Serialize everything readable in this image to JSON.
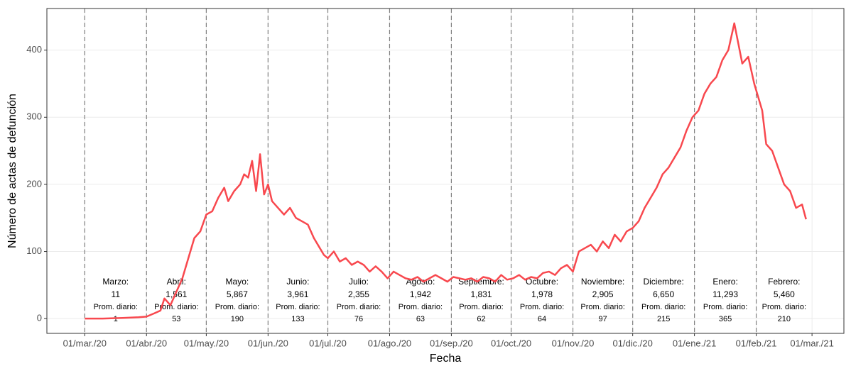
{
  "chart_data": {
    "type": "line",
    "xlabel": "Fecha",
    "ylabel": "Número de actas de defunción",
    "x": [
      "2020-03-01",
      "2020-03-10",
      "2020-03-20",
      "2020-03-28",
      "2020-04-01",
      "2020-04-05",
      "2020-04-08",
      "2020-04-10",
      "2020-04-13",
      "2020-04-16",
      "2020-04-19",
      "2020-04-22",
      "2020-04-25",
      "2020-04-28",
      "2020-05-01",
      "2020-05-04",
      "2020-05-07",
      "2020-05-10",
      "2020-05-12",
      "2020-05-15",
      "2020-05-18",
      "2020-05-20",
      "2020-05-22",
      "2020-05-24",
      "2020-05-26",
      "2020-05-28",
      "2020-05-30",
      "2020-06-01",
      "2020-06-03",
      "2020-06-06",
      "2020-06-09",
      "2020-06-12",
      "2020-06-15",
      "2020-06-18",
      "2020-06-21",
      "2020-06-24",
      "2020-06-27",
      "2020-06-29",
      "2020-07-01",
      "2020-07-04",
      "2020-07-07",
      "2020-07-10",
      "2020-07-13",
      "2020-07-16",
      "2020-07-19",
      "2020-07-22",
      "2020-07-25",
      "2020-07-28",
      "2020-07-31",
      "2020-08-03",
      "2020-08-06",
      "2020-08-09",
      "2020-08-12",
      "2020-08-15",
      "2020-08-18",
      "2020-08-21",
      "2020-08-24",
      "2020-08-27",
      "2020-08-30",
      "2020-09-02",
      "2020-09-05",
      "2020-09-08",
      "2020-09-11",
      "2020-09-14",
      "2020-09-17",
      "2020-09-20",
      "2020-09-23",
      "2020-09-26",
      "2020-09-29",
      "2020-10-02",
      "2020-10-05",
      "2020-10-08",
      "2020-10-11",
      "2020-10-14",
      "2020-10-17",
      "2020-10-20",
      "2020-10-23",
      "2020-10-26",
      "2020-10-29",
      "2020-11-01",
      "2020-11-04",
      "2020-11-07",
      "2020-11-10",
      "2020-11-13",
      "2020-11-16",
      "2020-11-19",
      "2020-11-22",
      "2020-11-25",
      "2020-11-28",
      "2020-12-01",
      "2020-12-04",
      "2020-12-07",
      "2020-12-10",
      "2020-12-13",
      "2020-12-16",
      "2020-12-19",
      "2020-12-22",
      "2020-12-25",
      "2020-12-28",
      "2020-12-31",
      "2021-01-03",
      "2021-01-06",
      "2021-01-09",
      "2021-01-12",
      "2021-01-15",
      "2021-01-18",
      "2021-01-21",
      "2021-01-23",
      "2021-01-25",
      "2021-01-28",
      "2021-01-31",
      "2021-02-02",
      "2021-02-04",
      "2021-02-06",
      "2021-02-09",
      "2021-02-12",
      "2021-02-15",
      "2021-02-18",
      "2021-02-21",
      "2021-02-24",
      "2021-02-26"
    ],
    "series": [
      {
        "color": "#f8484e",
        "values": [
          0,
          0,
          1,
          2,
          3,
          8,
          12,
          30,
          20,
          40,
          60,
          90,
          120,
          130,
          155,
          160,
          180,
          195,
          175,
          190,
          200,
          215,
          210,
          235,
          190,
          245,
          185,
          200,
          175,
          165,
          155,
          165,
          150,
          145,
          140,
          120,
          105,
          95,
          90,
          100,
          85,
          90,
          80,
          85,
          80,
          70,
          78,
          70,
          60,
          70,
          65,
          60,
          58,
          62,
          55,
          60,
          65,
          60,
          55,
          62,
          60,
          58,
          60,
          55,
          62,
          60,
          55,
          65,
          58,
          60,
          65,
          58,
          62,
          60,
          68,
          70,
          65,
          75,
          80,
          70,
          100,
          105,
          110,
          100,
          115,
          105,
          125,
          115,
          130,
          135,
          145,
          165,
          180,
          195,
          215,
          225,
          240,
          255,
          280,
          300,
          310,
          335,
          350,
          360,
          385,
          400,
          440,
          410,
          380,
          390,
          350,
          330,
          310,
          260,
          250,
          225,
          200,
          190,
          165,
          170,
          148
        ]
      }
    ],
    "xlim": [
      "2020-02-11",
      "2021-03-17"
    ],
    "xticks": [
      {
        "value": "2020-03-01",
        "label": "01/mar./20"
      },
      {
        "value": "2020-04-01",
        "label": "01/abr./20"
      },
      {
        "value": "2020-05-01",
        "label": "01/may./20"
      },
      {
        "value": "2020-06-01",
        "label": "01/jun./20"
      },
      {
        "value": "2020-07-01",
        "label": "01/jul./20"
      },
      {
        "value": "2020-08-01",
        "label": "01/ago./20"
      },
      {
        "value": "2020-09-01",
        "label": "01/sep./20"
      },
      {
        "value": "2020-10-01",
        "label": "01/oct./20"
      },
      {
        "value": "2020-11-01",
        "label": "01/nov./20"
      },
      {
        "value": "2020-12-01",
        "label": "01/dic./20"
      },
      {
        "value": "2021-01-01",
        "label": "01/ene./21"
      },
      {
        "value": "2021-02-01",
        "label": "01/feb./21"
      },
      {
        "value": "2021-03-01",
        "label": "01/mar./21"
      }
    ],
    "ylim": [
      -22,
      462
    ],
    "yticks": [
      0,
      100,
      200,
      300,
      400
    ],
    "grid": true,
    "annotations": [
      {
        "label": "Marzo:",
        "total": "11",
        "avg_label": "Prom. diario:",
        "avg": 1
      },
      {
        "label": "Abril:",
        "total": "1,561",
        "avg_label": "Prom. diario:",
        "avg": 53
      },
      {
        "label": "Mayo:",
        "total": "5,867",
        "avg_label": "Prom. diario:",
        "avg": 190
      },
      {
        "label": "Junio:",
        "total": "3,961",
        "avg_label": "Prom. diario:",
        "avg": 133
      },
      {
        "label": "Julio:",
        "total": "2,355",
        "avg_label": "Prom. diario:",
        "avg": 76
      },
      {
        "label": "Agosto:",
        "total": "1,942",
        "avg_label": "Prom. diario:",
        "avg": 63
      },
      {
        "label": "Septiembre:",
        "total": "1,831",
        "avg_label": "Prom. diario:",
        "avg": 62
      },
      {
        "label": "Octubre:",
        "total": "1,978",
        "avg_label": "Prom. diario:",
        "avg": 64
      },
      {
        "label": "Noviembre:",
        "total": "2,905",
        "avg_label": "Prom. diario:",
        "avg": 97
      },
      {
        "label": "Diciembre:",
        "total": "6,650",
        "avg_label": "Prom. diario:",
        "avg": 215
      },
      {
        "label": "Enero:",
        "total": "11,293",
        "avg_label": "Prom. diario:",
        "avg": 365
      },
      {
        "label": "Febrero:",
        "total": "5,460",
        "avg_label": "Prom. diario:",
        "avg": 210
      }
    ]
  }
}
